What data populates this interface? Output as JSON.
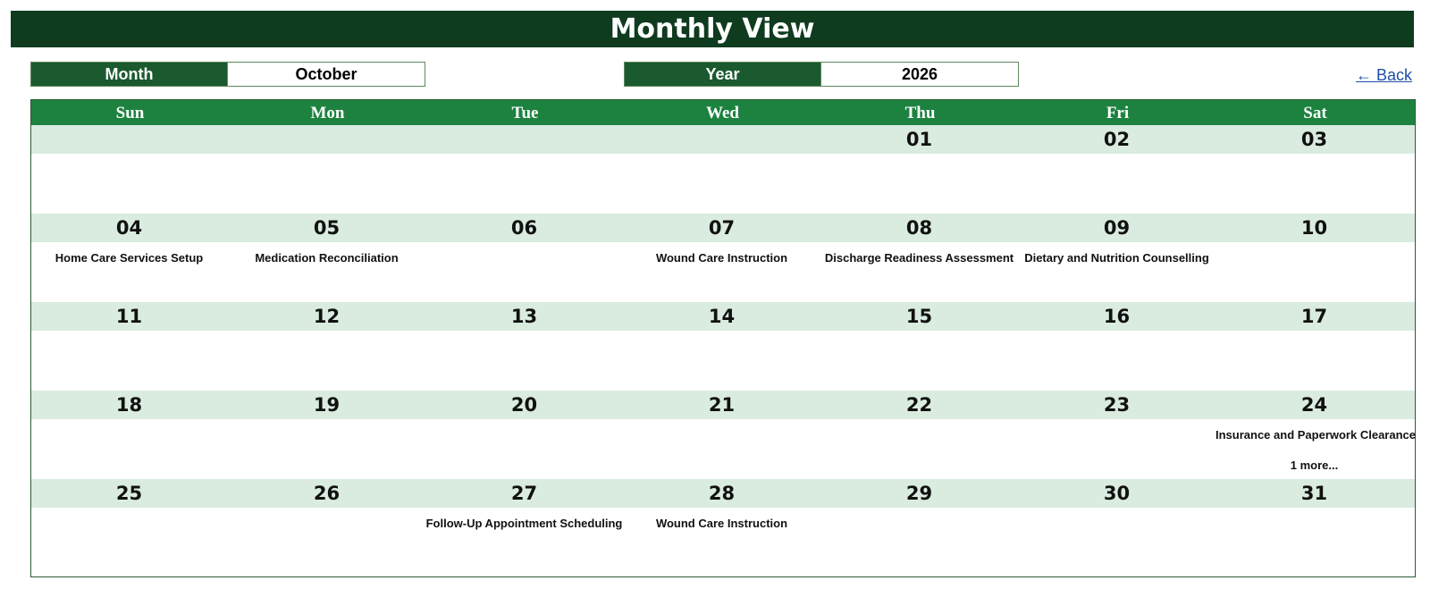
{
  "title": "Monthly View",
  "month_selector": {
    "label": "Month",
    "value": "October"
  },
  "year_selector": {
    "label": "Year",
    "value": "2026"
  },
  "back_link": "← Back",
  "weekdays": [
    "Sun",
    "Mon",
    "Tue",
    "Wed",
    "Thu",
    "Fri",
    "Sat"
  ],
  "weeks": [
    {
      "days": [
        {
          "num": "",
          "event": ""
        },
        {
          "num": "",
          "event": ""
        },
        {
          "num": "",
          "event": ""
        },
        {
          "num": "",
          "event": ""
        },
        {
          "num": "01",
          "event": ""
        },
        {
          "num": "02",
          "event": ""
        },
        {
          "num": "03",
          "event": ""
        }
      ]
    },
    {
      "days": [
        {
          "num": "04",
          "event": "Home Care Services Setup"
        },
        {
          "num": "05",
          "event": "Medication Reconciliation"
        },
        {
          "num": "06",
          "event": ""
        },
        {
          "num": "07",
          "event": "Wound Care Instruction"
        },
        {
          "num": "08",
          "event": "Discharge Readiness Assessment"
        },
        {
          "num": "09",
          "event": "Dietary and Nutrition Counselling"
        },
        {
          "num": "10",
          "event": ""
        }
      ]
    },
    {
      "days": [
        {
          "num": "11",
          "event": ""
        },
        {
          "num": "12",
          "event": ""
        },
        {
          "num": "13",
          "event": ""
        },
        {
          "num": "14",
          "event": ""
        },
        {
          "num": "15",
          "event": ""
        },
        {
          "num": "16",
          "event": ""
        },
        {
          "num": "17",
          "event": ""
        }
      ]
    },
    {
      "days": [
        {
          "num": "18",
          "event": ""
        },
        {
          "num": "19",
          "event": ""
        },
        {
          "num": "20",
          "event": ""
        },
        {
          "num": "21",
          "event": ""
        },
        {
          "num": "22",
          "event": ""
        },
        {
          "num": "23",
          "event": ""
        },
        {
          "num": "24",
          "event": "Insurance and Paperwork Clearance",
          "more": "1 more..."
        }
      ]
    },
    {
      "days": [
        {
          "num": "25",
          "event": ""
        },
        {
          "num": "26",
          "event": ""
        },
        {
          "num": "27",
          "event": "Follow-Up Appointment Scheduling"
        },
        {
          "num": "28",
          "event": "Wound Care Instruction"
        },
        {
          "num": "29",
          "event": ""
        },
        {
          "num": "30",
          "event": ""
        },
        {
          "num": "31",
          "event": ""
        }
      ]
    }
  ],
  "colors": {
    "title_bg": "#0f3b1f",
    "header_bg": "#1d8240",
    "label_bg": "#1b5a2f",
    "day_band": "#d9ecdf",
    "link": "#1f4fa6"
  }
}
